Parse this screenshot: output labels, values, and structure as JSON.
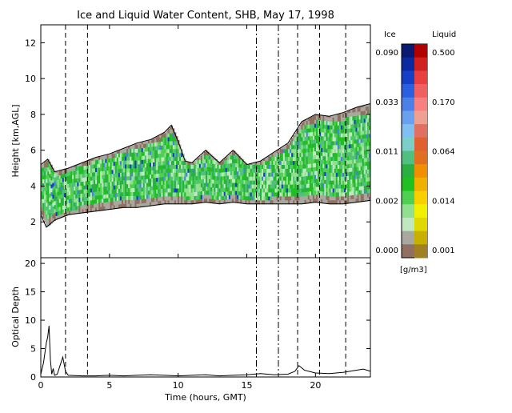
{
  "title": "Ice and Liquid Water Content, SHB, May 17, 1998",
  "xlabel": "Time (hours, GMT)",
  "colorbar": {
    "ice_label": "Ice",
    "liquid_label": "Liquid",
    "units": "[g/m3]",
    "ice_ticks": [
      "0.090",
      "0.033",
      "0.011",
      "0.002",
      "0.000"
    ],
    "liquid_ticks": [
      "0.500",
      "0.170",
      "0.064",
      "0.014",
      "0.001"
    ],
    "ice_colors": [
      "#0a1a70",
      "#0c2aa0",
      "#1440c8",
      "#2a60e0",
      "#4a80e8",
      "#6aa0f0",
      "#80c0f0",
      "#7ad0c8",
      "#50c080",
      "#2ab040",
      "#20c020",
      "#50d050",
      "#90e090",
      "#c0e8c0",
      "#a8a8a0",
      "#907060"
    ],
    "liquid_colors": [
      "#b00000",
      "#d02020",
      "#e84040",
      "#f06060",
      "#f88080",
      "#f0a090",
      "#e07060",
      "#e06030",
      "#e07020",
      "#f09000",
      "#f0b000",
      "#f8d000",
      "#f0f000",
      "#e0d800",
      "#c8b000",
      "#a08020"
    ]
  },
  "chart_data": [
    {
      "type": "heatmap",
      "title": "Ice and Liquid Water Content, SHB, May 17, 1998",
      "ylabel": "Height [km,AGL]",
      "xlim": [
        0,
        24
      ],
      "ylim": [
        0,
        13
      ],
      "x_ticks": [
        0,
        5,
        10,
        15,
        20
      ],
      "y_ticks": [
        2,
        4,
        6,
        8,
        10,
        12
      ],
      "colorbar_units": "g/m3",
      "cloud_base_km": [
        [
          0,
          2.4
        ],
        [
          0.4,
          1.7
        ],
        [
          1,
          2.1
        ],
        [
          2,
          2.4
        ],
        [
          3,
          2.5
        ],
        [
          4,
          2.6
        ],
        [
          5,
          2.7
        ],
        [
          6,
          2.8
        ],
        [
          7,
          2.8
        ],
        [
          8,
          2.9
        ],
        [
          9,
          3.0
        ],
        [
          10,
          3.0
        ],
        [
          11,
          3.0
        ],
        [
          12,
          3.1
        ],
        [
          13,
          3.0
        ],
        [
          14,
          3.1
        ],
        [
          15,
          3.0
        ],
        [
          16,
          3.0
        ],
        [
          17,
          3.0
        ],
        [
          18,
          3.0
        ],
        [
          19,
          3.0
        ],
        [
          20,
          3.1
        ],
        [
          21,
          3.0
        ],
        [
          22,
          3.0
        ],
        [
          23,
          3.1
        ],
        [
          24,
          3.2
        ]
      ],
      "cloud_top_km": [
        [
          0,
          5.2
        ],
        [
          0.5,
          5.5
        ],
        [
          1,
          4.8
        ],
        [
          2,
          5.0
        ],
        [
          3,
          5.3
        ],
        [
          4,
          5.6
        ],
        [
          5,
          5.8
        ],
        [
          6,
          6.1
        ],
        [
          7,
          6.4
        ],
        [
          8,
          6.6
        ],
        [
          9,
          7.0
        ],
        [
          9.5,
          7.4
        ],
        [
          10,
          6.5
        ],
        [
          10.5,
          5.4
        ],
        [
          11,
          5.3
        ],
        [
          12,
          6.0
        ],
        [
          13,
          5.3
        ],
        [
          14,
          6.0
        ],
        [
          15,
          5.2
        ],
        [
          16,
          5.4
        ],
        [
          17,
          5.9
        ],
        [
          18,
          6.4
        ],
        [
          18.5,
          7.0
        ],
        [
          19,
          7.6
        ],
        [
          20,
          8.0
        ],
        [
          21,
          7.9
        ],
        [
          22,
          8.1
        ],
        [
          23,
          8.4
        ],
        [
          24,
          8.6
        ]
      ],
      "vertical_markers_hours": [
        1.8,
        3.4,
        15.7,
        17.3,
        18.7,
        20.3,
        22.2
      ]
    },
    {
      "type": "line",
      "ylabel": "Optical Depth",
      "xlabel": "Time (hours, GMT)",
      "xlim": [
        0,
        24
      ],
      "ylim": [
        0,
        21
      ],
      "x_ticks": [
        0,
        5,
        10,
        15,
        20
      ],
      "y_ticks": [
        0,
        5,
        10,
        15,
        20
      ],
      "series": [
        {
          "x": [
            0,
            0.2,
            0.4,
            0.5,
            0.6,
            0.7,
            0.8,
            0.9,
            1.0,
            1.2,
            1.4,
            1.6,
            1.8,
            2.0,
            3.0,
            4.0,
            5.0,
            6.0,
            7.0,
            8.0,
            9.0,
            10.0,
            11.0,
            12.0,
            13.0,
            14.0,
            15.0,
            16.0,
            17.0,
            18.0,
            18.5,
            18.8,
            19.2,
            20.0,
            21.0,
            22.0,
            23.0,
            23.5,
            24.0
          ],
          "y": [
            0.5,
            2.5,
            6.0,
            7.0,
            9.0,
            3.0,
            0.5,
            1.5,
            0.3,
            0.5,
            2.0,
            3.5,
            1.0,
            0.3,
            0.2,
            0.2,
            0.3,
            0.2,
            0.3,
            0.4,
            0.3,
            0.2,
            0.3,
            0.4,
            0.2,
            0.3,
            0.4,
            0.6,
            0.4,
            0.5,
            1.0,
            2.0,
            1.2,
            0.7,
            0.6,
            0.8,
            1.2,
            1.4,
            1.0
          ]
        }
      ],
      "vertical_markers_hours": [
        1.8,
        3.4,
        15.7,
        17.3,
        18.7,
        20.3,
        22.2
      ]
    }
  ]
}
